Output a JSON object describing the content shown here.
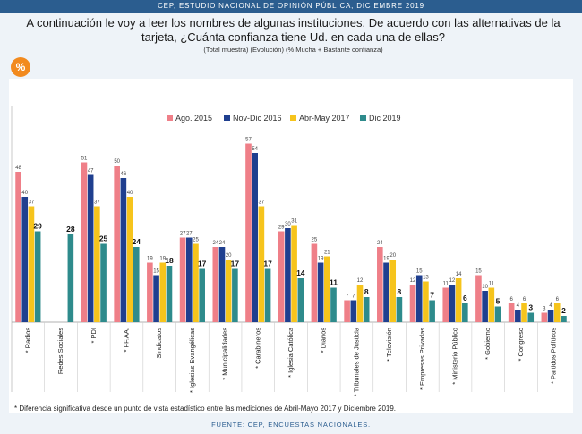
{
  "header": {
    "banner": "CEP, ESTUDIO NACIONAL DE OPINIÓN PÚBLICA, DICIEMBRE 2019",
    "question": "A continuación le voy a leer los nombres de algunas instituciones. De acuerdo con las alternativas de la tarjeta, ¿Cuánta confianza tiene Ud. en cada una de ellas?",
    "subtitle": "(Total muestra) (Evolución) (% Mucha + Bastante confianza)",
    "badge": "%"
  },
  "footer": {
    "note": "* Diferencia significativa desde un punto de vista estadístico entre las mediciones de Abril-Mayo 2017 y Diciembre 2019.",
    "source": "FUENTE: CEP, ENCUESTAS NACIONALES."
  },
  "chart_data": {
    "type": "bar",
    "categories": [
      "* Radios",
      "Redes Sociales",
      "* PDI",
      "* FF.AA.",
      "Sindicatos",
      "* Iglesias Evangélicas",
      "* Municipalidades",
      "* Carabineros",
      "* Iglesia Católica",
      "* Diarios",
      "* Tribunales de Justicia",
      "* Televisión",
      "* Empresas Privadas",
      "* Ministerio Público",
      "* Gobierno",
      "* Congreso",
      "* Partidos Políticos"
    ],
    "series": [
      {
        "name": "Ago. 2015",
        "color": "#ef7f88",
        "values": [
          48,
          null,
          51,
          50,
          19,
          27,
          24,
          57,
          29,
          25,
          7,
          24,
          12,
          11,
          15,
          6,
          3
        ]
      },
      {
        "name": "Nov-Dic 2016",
        "color": "#1f3f8f",
        "values": [
          40,
          null,
          47,
          46,
          15,
          27,
          24,
          54,
          30,
          19,
          7,
          19,
          15,
          12,
          10,
          4,
          4
        ]
      },
      {
        "name": "Abr-May 2017",
        "color": "#f6c41c",
        "values": [
          37,
          null,
          37,
          40,
          19,
          25,
          20,
          37,
          31,
          21,
          12,
          20,
          13,
          14,
          11,
          6,
          6
        ]
      },
      {
        "name": "Dic 2019",
        "color": "#2e8b8c",
        "values": [
          29,
          28,
          25,
          24,
          18,
          17,
          17,
          17,
          14,
          11,
          8,
          8,
          7,
          6,
          5,
          3,
          2
        ]
      }
    ],
    "ylim": [
      0,
      60
    ],
    "legend": "top-center",
    "grid": false
  }
}
